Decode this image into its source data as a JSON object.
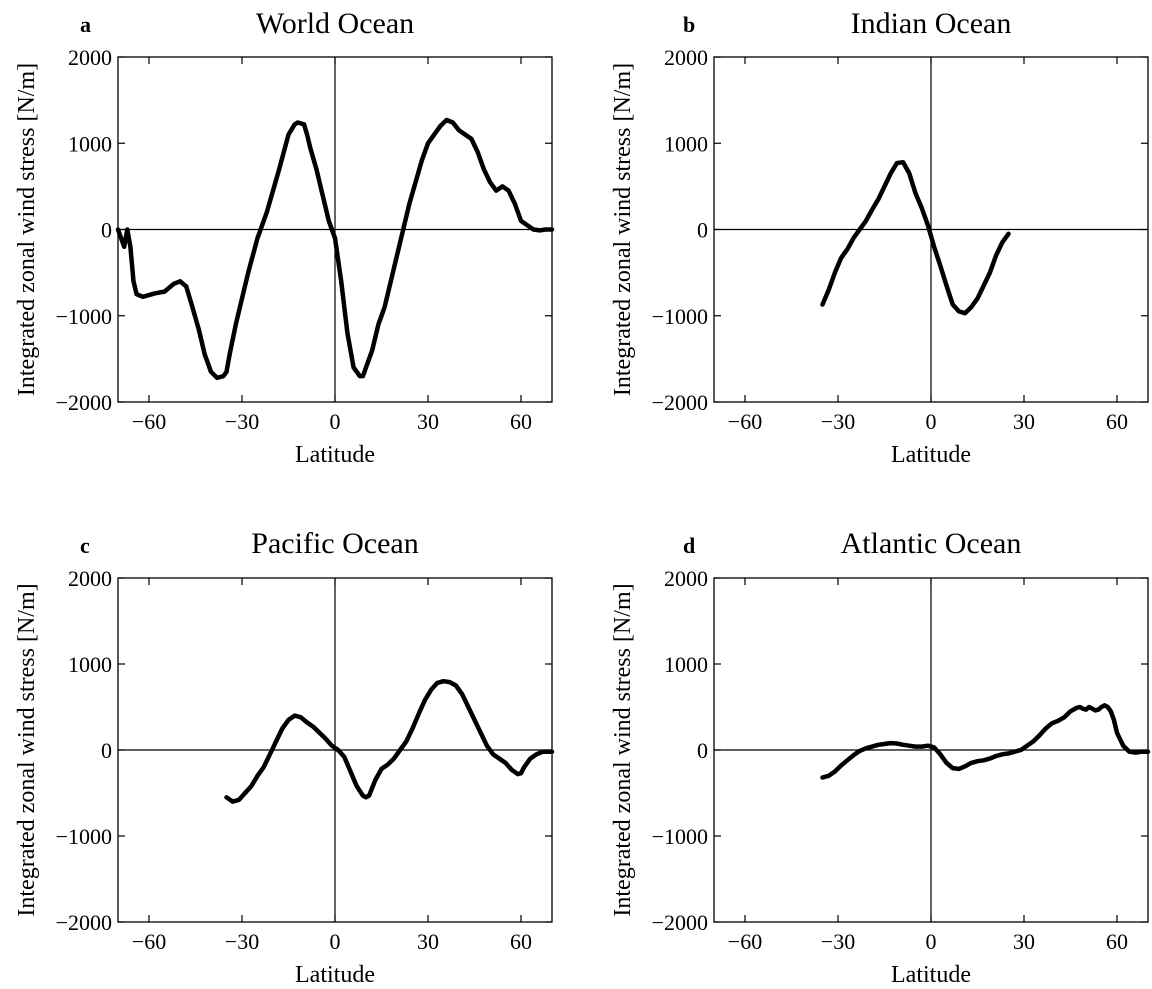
{
  "chart_data": [
    {
      "type": "line",
      "panel_letter": "a",
      "title": "World Ocean",
      "xlabel": "Latitude",
      "ylabel": "Integrated zonal wind stress [N/m]",
      "xlim": [
        -70,
        70
      ],
      "ylim": [
        -2000,
        2000
      ],
      "xticks": [
        -60,
        -30,
        0,
        30,
        60
      ],
      "yticks": [
        -2000,
        -1000,
        0,
        1000,
        2000
      ],
      "zero_lines": true,
      "grid": false,
      "x": [
        -70,
        -69,
        -68,
        -67,
        -66,
        -65,
        -64,
        -62,
        -60,
        -58,
        -55,
        -52,
        -50,
        -48,
        -46,
        -44,
        -42,
        -40,
        -38,
        -36,
        -35,
        -34,
        -32,
        -30,
        -28,
        -25,
        -22,
        -20,
        -18,
        -15,
        -13,
        -12,
        -10,
        -9,
        -8,
        -6,
        -4,
        -2,
        0,
        2,
        4,
        6,
        8,
        9,
        10,
        12,
        14,
        16,
        18,
        20,
        22,
        24,
        26,
        28,
        30,
        32,
        34,
        36,
        38,
        40,
        42,
        44,
        46,
        48,
        50,
        52,
        54,
        56,
        58,
        60,
        62,
        64,
        66,
        68,
        70
      ],
      "y": [
        0,
        -100,
        -200,
        0,
        -200,
        -600,
        -750,
        -780,
        -760,
        -740,
        -720,
        -630,
        -600,
        -660,
        -900,
        -1150,
        -1450,
        -1650,
        -1720,
        -1700,
        -1650,
        -1450,
        -1100,
        -800,
        -500,
        -100,
        200,
        450,
        700,
        1100,
        1220,
        1240,
        1220,
        1100,
        950,
        700,
        400,
        100,
        -100,
        -600,
        -1200,
        -1600,
        -1700,
        -1700,
        -1600,
        -1400,
        -1100,
        -900,
        -600,
        -300,
        0,
        300,
        550,
        800,
        1000,
        1100,
        1200,
        1270,
        1240,
        1150,
        1100,
        1050,
        900,
        700,
        550,
        450,
        500,
        450,
        300,
        100,
        50,
        0,
        -10,
        0,
        0
      ]
    },
    {
      "type": "line",
      "panel_letter": "b",
      "title": "Indian Ocean",
      "xlabel": "Latitude",
      "ylabel": "Integrated zonal wind stress [N/m]",
      "xlim": [
        -70,
        70
      ],
      "ylim": [
        -2000,
        2000
      ],
      "xticks": [
        -60,
        -30,
        0,
        30,
        60
      ],
      "yticks": [
        -2000,
        -1000,
        0,
        1000,
        2000
      ],
      "zero_lines": true,
      "grid": false,
      "x": [
        -35,
        -33,
        -31,
        -29,
        -27,
        -25,
        -23,
        -21,
        -19,
        -17,
        -15,
        -13,
        -11,
        -9,
        -7,
        -5,
        -3,
        -1,
        1,
        3,
        5,
        7,
        9,
        11,
        13,
        15,
        17,
        19,
        21,
        23,
        25
      ],
      "y": [
        -870,
        -700,
        -500,
        -330,
        -230,
        -100,
        0,
        100,
        230,
        350,
        500,
        650,
        770,
        780,
        650,
        420,
        250,
        50,
        -200,
        -420,
        -650,
        -870,
        -950,
        -970,
        -900,
        -800,
        -650,
        -500,
        -300,
        -150,
        -50
      ]
    },
    {
      "type": "line",
      "panel_letter": "c",
      "title": "Pacific Ocean",
      "xlabel": "Latitude",
      "ylabel": "Integrated zonal wind stress [N/m]",
      "xlim": [
        -70,
        70
      ],
      "ylim": [
        -2000,
        2000
      ],
      "xticks": [
        -60,
        -30,
        0,
        30,
        60
      ],
      "yticks": [
        -2000,
        -1000,
        0,
        1000,
        2000
      ],
      "zero_lines": true,
      "grid": false,
      "x": [
        -35,
        -33,
        -31,
        -29,
        -27,
        -25,
        -23,
        -21,
        -19,
        -17,
        -15,
        -13,
        -11,
        -9,
        -7,
        -5,
        -3,
        -1,
        1,
        3,
        5,
        7,
        9,
        10,
        11,
        13,
        15,
        17,
        19,
        21,
        23,
        25,
        27,
        29,
        31,
        33,
        35,
        37,
        39,
        41,
        43,
        45,
        47,
        49,
        51,
        53,
        55,
        57,
        59,
        60,
        61,
        63,
        65,
        67,
        70
      ],
      "y": [
        -550,
        -600,
        -580,
        -500,
        -420,
        -300,
        -200,
        -50,
        100,
        250,
        350,
        400,
        380,
        320,
        270,
        200,
        130,
        50,
        0,
        -80,
        -250,
        -420,
        -530,
        -550,
        -530,
        -350,
        -220,
        -170,
        -100,
        0,
        100,
        250,
        420,
        580,
        700,
        780,
        800,
        790,
        750,
        650,
        500,
        350,
        200,
        50,
        -50,
        -100,
        -150,
        -230,
        -280,
        -270,
        -200,
        -100,
        -50,
        -20,
        -20
      ]
    },
    {
      "type": "line",
      "panel_letter": "d",
      "title": "Atlantic Ocean",
      "xlabel": "Latitude",
      "ylabel": "Integrated zonal wind stress [N/m]",
      "xlim": [
        -70,
        70
      ],
      "ylim": [
        -2000,
        2000
      ],
      "xticks": [
        -60,
        -30,
        0,
        30,
        60
      ],
      "yticks": [
        -2000,
        -1000,
        0,
        1000,
        2000
      ],
      "zero_lines": true,
      "grid": false,
      "x": [
        -35,
        -33,
        -31,
        -29,
        -27,
        -25,
        -23,
        -21,
        -19,
        -17,
        -15,
        -13,
        -11,
        -9,
        -7,
        -5,
        -3,
        -1,
        1,
        3,
        5,
        7,
        9,
        11,
        13,
        15,
        17,
        19,
        21,
        23,
        25,
        27,
        29,
        31,
        33,
        35,
        37,
        39,
        41,
        43,
        45,
        47,
        48,
        49,
        50,
        51,
        52,
        53,
        54,
        55,
        56,
        57,
        58,
        59,
        60,
        62,
        64,
        66,
        68,
        70
      ],
      "y": [
        -320,
        -300,
        -250,
        -180,
        -120,
        -60,
        -10,
        20,
        40,
        60,
        70,
        80,
        75,
        60,
        50,
        40,
        40,
        50,
        30,
        -50,
        -150,
        -210,
        -220,
        -190,
        -150,
        -130,
        -120,
        -100,
        -70,
        -50,
        -40,
        -20,
        0,
        50,
        100,
        170,
        250,
        310,
        340,
        380,
        450,
        490,
        500,
        480,
        470,
        500,
        480,
        460,
        470,
        500,
        520,
        500,
        450,
        350,
        200,
        50,
        -20,
        -30,
        -20,
        -20
      ]
    }
  ]
}
